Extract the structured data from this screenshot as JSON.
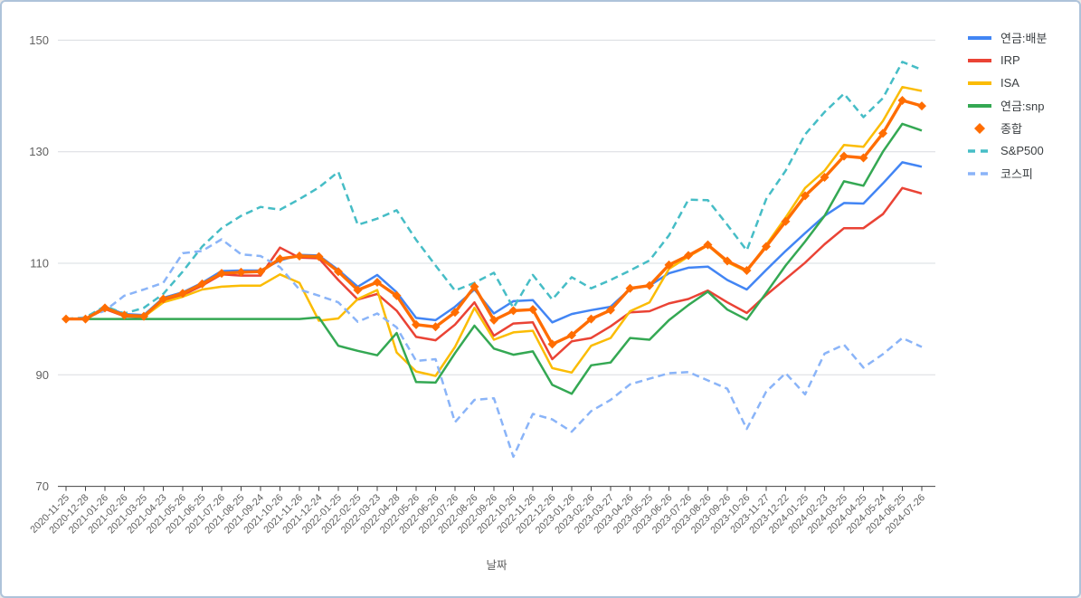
{
  "page": {
    "background": "#ffffff",
    "border_color": "#aec3da"
  },
  "chart_data": {
    "type": "line",
    "title": "",
    "x_label": "날짜",
    "ylabel": "",
    "y_ticks": [
      70,
      90,
      110,
      130,
      150
    ],
    "ylim": [
      70,
      152
    ],
    "grid": "horizontal",
    "legend_position": "top-right",
    "axis_color": "#616161",
    "gridline_color": "#dadce0",
    "tick_label_color": "#616161",
    "x_tick_labels": [
      "2020-11-25",
      "2020-12-28",
      "2021-01-26",
      "2021-02-26",
      "2021-03-25",
      "2021-04-23",
      "2021-05-26",
      "2021-06-25",
      "2021-07-26",
      "2021-08-25",
      "2021-09-24",
      "2021-10-26",
      "2021-11-26",
      "2021-12-24",
      "2022-01-25",
      "2022-02-25",
      "2022-03-23",
      "2022-04-28",
      "2022-05-26",
      "2022-06-26",
      "2022-07-26",
      "2022-08-26",
      "2022-09-26",
      "2022-10-26",
      "2022-11-26",
      "2022-12-26",
      "2023-01-26",
      "2023-02-26",
      "2023-03-27",
      "2023-04-26",
      "2023-05-25",
      "2023-06-26",
      "2023-07-26",
      "2023-08-26",
      "2023-09-26",
      "2023-10-26",
      "2023-11-27",
      "2023-12-22",
      "2024-01-25",
      "2024-02-23",
      "2024-03-25",
      "2024-04-25",
      "2024-05-24",
      "2024-06-25",
      "2024-07-26"
    ],
    "series": [
      {
        "name": "연금:배분",
        "color": "#4285F4",
        "style": "solid",
        "marker": "none",
        "values": [
          100,
          100,
          102.2,
          100.9,
          100.7,
          103.8,
          104.8,
          106.5,
          108.6,
          108.7,
          108.7,
          110.5,
          111.5,
          111.4,
          108.8,
          105.8,
          107.9,
          104.8,
          100.2,
          99.8,
          102.2,
          105.3,
          101,
          103.2,
          103.4,
          99.4,
          100.9,
          101.6,
          102.2,
          105.4,
          106,
          108.2,
          109.2,
          109.4,
          107,
          105.3,
          108.8,
          112.2,
          115.4,
          118.5,
          120.8,
          120.7,
          124.3,
          128.1,
          127.3
        ]
      },
      {
        "name": "IRP",
        "color": "#EA4335",
        "style": "solid",
        "marker": "none",
        "values": [
          100,
          100,
          101.8,
          100.5,
          100.3,
          103.3,
          104.3,
          106,
          108,
          107.8,
          107.8,
          112.8,
          111,
          110.9,
          107,
          103.5,
          104.5,
          101.5,
          96.8,
          96.2,
          99,
          103,
          97,
          99.2,
          99.4,
          92.8,
          96,
          96.6,
          98.7,
          101.2,
          101.4,
          102.8,
          103.6,
          105.1,
          103,
          101.1,
          104.3,
          107.2,
          110.1,
          113.4,
          116.3,
          116.3,
          118.8,
          123.5,
          122.5
        ]
      },
      {
        "name": "ISA",
        "color": "#FBBC04",
        "style": "solid",
        "marker": "none",
        "values": [
          100,
          100,
          102,
          100.6,
          100.4,
          103,
          104,
          105.3,
          105.8,
          106,
          106,
          108,
          106.5,
          99.7,
          100.1,
          103.6,
          105.2,
          94,
          90.6,
          89.8,
          95,
          102,
          96.3,
          97.6,
          97.9,
          91.2,
          90.4,
          95.2,
          96.6,
          101.4,
          103,
          109,
          111.2,
          113.2,
          110.2,
          108.5,
          113.3,
          118.2,
          123.5,
          126.6,
          131.2,
          130.9,
          135.5,
          141.6,
          140.9
        ]
      },
      {
        "name": "연금:snp",
        "color": "#34A853",
        "style": "solid",
        "marker": "none",
        "values": [
          100,
          100,
          100,
          100,
          100,
          100,
          100,
          100,
          100,
          100,
          100,
          100,
          100,
          100.3,
          95.2,
          94.3,
          93.5,
          97.5,
          88.7,
          88.6,
          93.9,
          98.8,
          94.7,
          93.6,
          94.2,
          88.2,
          86.6,
          91.7,
          92.2,
          96.6,
          96.3,
          99.8,
          102.5,
          104.9,
          101.7,
          99.9,
          104.7,
          109.6,
          113.9,
          118.5,
          124.7,
          123.9,
          130,
          135,
          133.8
        ]
      },
      {
        "name": "종합",
        "color": "#FF6D01",
        "style": "solid",
        "marker": "diamond",
        "values": [
          100,
          100,
          102,
          100.7,
          100.5,
          103.6,
          104.6,
          106.3,
          108.2,
          108.4,
          108.5,
          110.8,
          111.3,
          111.2,
          108.5,
          105.2,
          106.6,
          104.2,
          99,
          98.6,
          101.2,
          105.8,
          99.8,
          101.5,
          101.7,
          95.5,
          97.1,
          100,
          101.6,
          105.5,
          106,
          109.7,
          111.4,
          113.3,
          110.4,
          108.7,
          113,
          117.5,
          122.1,
          125.4,
          129.2,
          128.9,
          133.3,
          139.2,
          138.2
        ]
      },
      {
        "name": "S&P500",
        "color": "#46BDC6",
        "style": "dashed",
        "marker": "none",
        "values": [
          100,
          100.3,
          102.3,
          101,
          102,
          104.5,
          108.5,
          113,
          116.3,
          118.5,
          120.1,
          119.6,
          121.5,
          123.6,
          126.4,
          116.9,
          118,
          119.5,
          114.2,
          109.6,
          105.1,
          106.5,
          108.3,
          102,
          107.9,
          103.5,
          107.5,
          105.5,
          107,
          108.7,
          110.5,
          115,
          121.4,
          121.3,
          116.9,
          112.3,
          121.5,
          126.6,
          133.1,
          137.1,
          140.4,
          136.2,
          139.6,
          146.1,
          144.7
        ]
      },
      {
        "name": "코스피",
        "color": "#8AB4F8",
        "style": "dashed",
        "marker": "none",
        "values": [
          100,
          100.2,
          101.5,
          104.2,
          105.3,
          106.5,
          111.8,
          112.2,
          114.3,
          111.6,
          111.3,
          109.3,
          105.3,
          104.2,
          103,
          99.5,
          101,
          98.5,
          92.5,
          92.8,
          81.5,
          85.5,
          85.8,
          75.3,
          83,
          82,
          79.8,
          83.5,
          85.5,
          88.3,
          89.3,
          90.3,
          90.5,
          89,
          87.5,
          80.3,
          87,
          90.3,
          86.5,
          93.8,
          95.4,
          91.3,
          93.7,
          96.6,
          95
        ]
      }
    ]
  }
}
